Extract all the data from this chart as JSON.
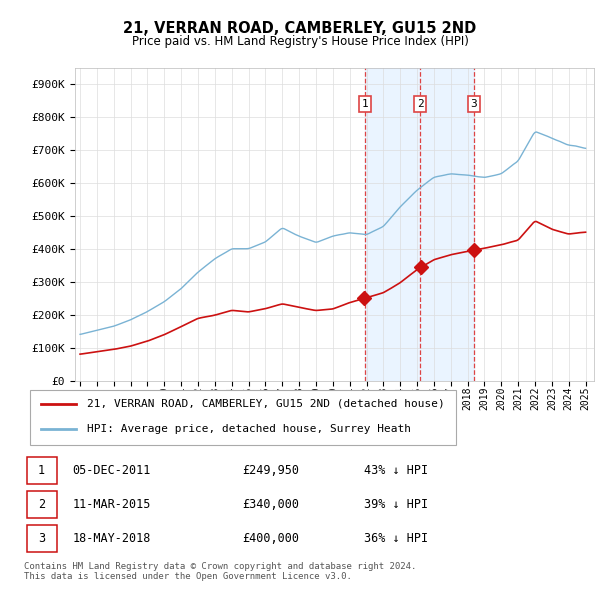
{
  "title": "21, VERRAN ROAD, CAMBERLEY, GU15 2ND",
  "subtitle": "Price paid vs. HM Land Registry's House Price Index (HPI)",
  "yticks": [
    0,
    100000,
    200000,
    300000,
    400000,
    500000,
    600000,
    700000,
    800000,
    900000
  ],
  "ytick_labels": [
    "£0",
    "£100K",
    "£200K",
    "£300K",
    "£400K",
    "£500K",
    "£600K",
    "£700K",
    "£800K",
    "£900K"
  ],
  "ylim": [
    0,
    950000
  ],
  "xlim_left": 1994.7,
  "xlim_right": 2025.5,
  "hpi_color": "#7ab3d4",
  "price_color": "#cc1111",
  "vline_color": "#dd4444",
  "shade_color": "#ddeeff",
  "transactions": [
    {
      "label": "1",
      "date_str": "05-DEC-2011",
      "date_x": 2011.92,
      "price": 249950,
      "pct": "43% ↓ HPI"
    },
    {
      "label": "2",
      "date_str": "11-MAR-2015",
      "date_x": 2015.19,
      "price": 340000,
      "pct": "39% ↓ HPI"
    },
    {
      "label": "3",
      "date_str": "18-MAY-2018",
      "date_x": 2018.37,
      "price": 400000,
      "pct": "36% ↓ HPI"
    }
  ],
  "legend_entries": [
    {
      "label": "21, VERRAN ROAD, CAMBERLEY, GU15 2ND (detached house)",
      "color": "#cc1111"
    },
    {
      "label": "HPI: Average price, detached house, Surrey Heath",
      "color": "#7ab3d4"
    }
  ],
  "footer": "Contains HM Land Registry data © Crown copyright and database right 2024.\nThis data is licensed under the Open Government Licence v3.0.",
  "background_color": "#ffffff",
  "grid_color": "#dddddd"
}
